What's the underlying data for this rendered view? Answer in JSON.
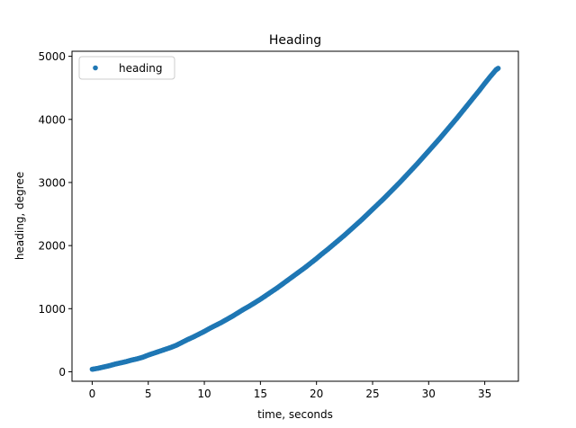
{
  "chart_data": {
    "type": "scatter",
    "title": "Heading",
    "xlabel": "time, seconds",
    "ylabel": "heading, degree",
    "xlim": [
      -1.8,
      38.0
    ],
    "ylim": [
      -150,
      5080
    ],
    "xticks": [
      0,
      5,
      10,
      15,
      20,
      25,
      30,
      35
    ],
    "yticks": [
      0,
      1000,
      2000,
      3000,
      4000,
      5000
    ],
    "grid": false,
    "legend_position": "top-left",
    "series": [
      {
        "name": "heading",
        "color": "#1f77b4",
        "marker": "point",
        "x": [
          0,
          0.5,
          1,
          1.5,
          2,
          2.5,
          3,
          3.5,
          4,
          4.5,
          5,
          5.5,
          6,
          6.5,
          7,
          7.5,
          8,
          8.5,
          9,
          9.5,
          10,
          10.5,
          11,
          11.5,
          12,
          12.5,
          13,
          13.5,
          14,
          14.5,
          15,
          15.5,
          16,
          16.5,
          17,
          17.5,
          18,
          18.5,
          19,
          19.5,
          20,
          20.5,
          21,
          21.5,
          22,
          22.5,
          23,
          23.5,
          24,
          24.5,
          25,
          25.5,
          26,
          26.5,
          27,
          27.5,
          28,
          28.5,
          29,
          29.5,
          30,
          30.5,
          31,
          31.5,
          32,
          32.5,
          33,
          33.5,
          34,
          34.5,
          35,
          35.5,
          36,
          36.2
        ],
        "y": [
          40,
          55,
          75,
          95,
          120,
          140,
          160,
          185,
          205,
          230,
          265,
          295,
          325,
          355,
          385,
          420,
          465,
          510,
          550,
          595,
          640,
          690,
          735,
          780,
          830,
          880,
          935,
          990,
          1040,
          1095,
          1150,
          1210,
          1270,
          1330,
          1395,
          1460,
          1525,
          1590,
          1655,
          1725,
          1795,
          1870,
          1940,
          2015,
          2090,
          2165,
          2245,
          2325,
          2405,
          2490,
          2575,
          2660,
          2745,
          2835,
          2925,
          3015,
          3110,
          3205,
          3300,
          3400,
          3500,
          3600,
          3700,
          3805,
          3910,
          4015,
          4125,
          4235,
          4345,
          4455,
          4570,
          4680,
          4785,
          4810
        ]
      }
    ]
  }
}
